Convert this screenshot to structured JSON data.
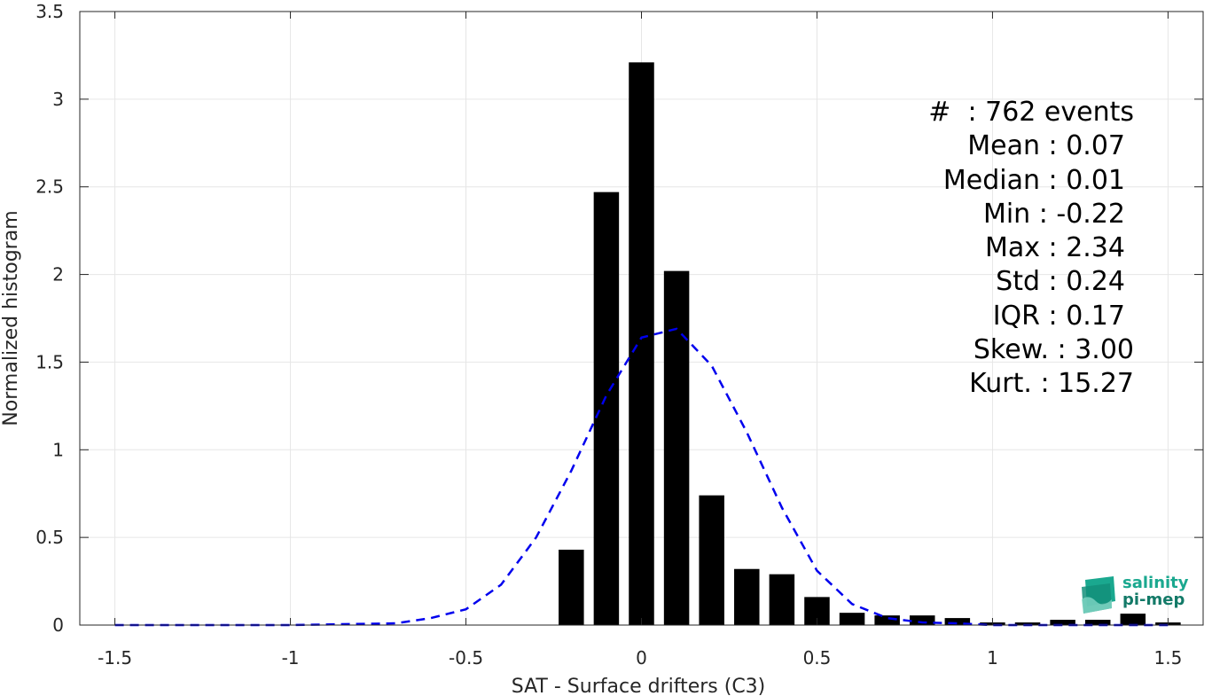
{
  "chart_data": {
    "type": "bar",
    "xlabel": "SAT - Surface drifters (C3)",
    "ylabel": "Normalized histogram",
    "xlim": [
      -1.6,
      1.6
    ],
    "ylim": [
      0,
      3.5
    ],
    "grid": true,
    "xticks": [
      "-1.5",
      "-1",
      "-0.5",
      "0",
      "0.5",
      "1",
      "1.5"
    ],
    "yticks": [
      "0",
      "0.5",
      "1",
      "1.5",
      "2",
      "2.5",
      "3",
      "3.5"
    ],
    "bar_color": "#000000",
    "bins": {
      "x": [
        -0.2,
        -0.1,
        0.0,
        0.1,
        0.2,
        0.3,
        0.4,
        0.5,
        0.6,
        0.7,
        0.8,
        0.9,
        1.0,
        1.1,
        1.2,
        1.3,
        1.4,
        1.5
      ],
      "values": [
        0.43,
        2.47,
        3.21,
        2.02,
        0.74,
        0.32,
        0.29,
        0.16,
        0.07,
        0.055,
        0.055,
        0.04,
        0.015,
        0.015,
        0.03,
        0.03,
        0.065,
        0.015
      ]
    },
    "fit_curve": {
      "style": "dashed",
      "color": "#0000ee",
      "x": [
        -1.5,
        -1.0,
        -0.7,
        -0.6,
        -0.5,
        -0.4,
        -0.3,
        -0.2,
        -0.1,
        0.0,
        0.1,
        0.2,
        0.3,
        0.4,
        0.5,
        0.6,
        0.7,
        0.8,
        0.9,
        1.0,
        1.2,
        1.4,
        1.5
      ],
      "y": [
        0.0,
        0.0,
        0.01,
        0.04,
        0.09,
        0.23,
        0.5,
        0.88,
        1.31,
        1.64,
        1.69,
        1.48,
        1.1,
        0.67,
        0.31,
        0.12,
        0.04,
        0.015,
        0.01,
        0.0,
        0.0,
        0.0,
        0.0
      ]
    }
  },
  "stats": {
    "count": "#  : 762 events",
    "mean": "Mean : 0.07",
    "median": "Median : 0.01",
    "min": "Min : -0.22",
    "max": "Max : 2.34",
    "std": "Std : 0.24",
    "iqr": "IQR : 0.17",
    "skew": "Skew. : 3.00",
    "kurt": "Kurt. : 15.27"
  },
  "logo": {
    "line1": "salinity",
    "line2": "pi-mep",
    "color": "#1aa88f"
  }
}
